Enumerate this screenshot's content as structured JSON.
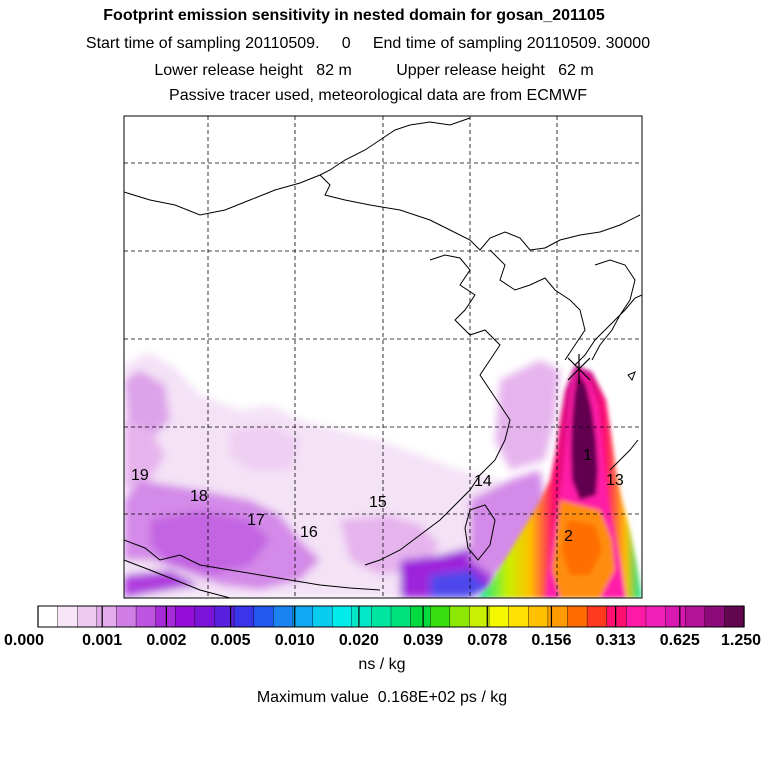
{
  "titles": {
    "line1": "Footprint emission sensitivity in nested domain for gosan_201105",
    "line2": "Start time of sampling 20110509.     0     End time of sampling 20110509. 30000",
    "line3": "Lower release height   82 m          Upper release height   62 m",
    "line4": "Passive tracer used, meteorological data are from ECMWF"
  },
  "day_labels": [
    {
      "text": "19"
    },
    {
      "text": "18"
    },
    {
      "text": "17"
    },
    {
      "text": "16"
    },
    {
      "text": "15"
    },
    {
      "text": "14"
    },
    {
      "text": "1"
    },
    {
      "text": "13"
    },
    {
      "text": "2"
    }
  ],
  "colorbar": {
    "tick_labels": [
      "0.000",
      "0.001",
      "0.002",
      "0.005",
      "0.010",
      "0.020",
      "0.039",
      "0.078",
      "0.156",
      "0.313",
      "0.625",
      "1.250"
    ],
    "colors": [
      "#ffffff",
      "#f6e6f8",
      "#eecaf2",
      "#e4acec",
      "#d07ee6",
      "#bd55e0",
      "#a82bdb",
      "#9410d8",
      "#7a14d8",
      "#5a1fe0",
      "#3a34ea",
      "#2358f0",
      "#1a82f2",
      "#10a8f2",
      "#06cdf0",
      "#00ecec",
      "#00e8c8",
      "#00e6a0",
      "#00e27a",
      "#00dc40",
      "#3ade10",
      "#8ce800",
      "#c8f000",
      "#f4f800",
      "#ffe000",
      "#ffc000",
      "#ff9a00",
      "#ff6a00",
      "#ff3a20",
      "#ff1070",
      "#ff1aa8",
      "#f020b8",
      "#d818b0",
      "#b41298",
      "#8c0a7a",
      "#62064f"
    ],
    "unit": "ns / kg"
  },
  "max_value": "Maximum value  0.168E+02 ps / kg"
}
